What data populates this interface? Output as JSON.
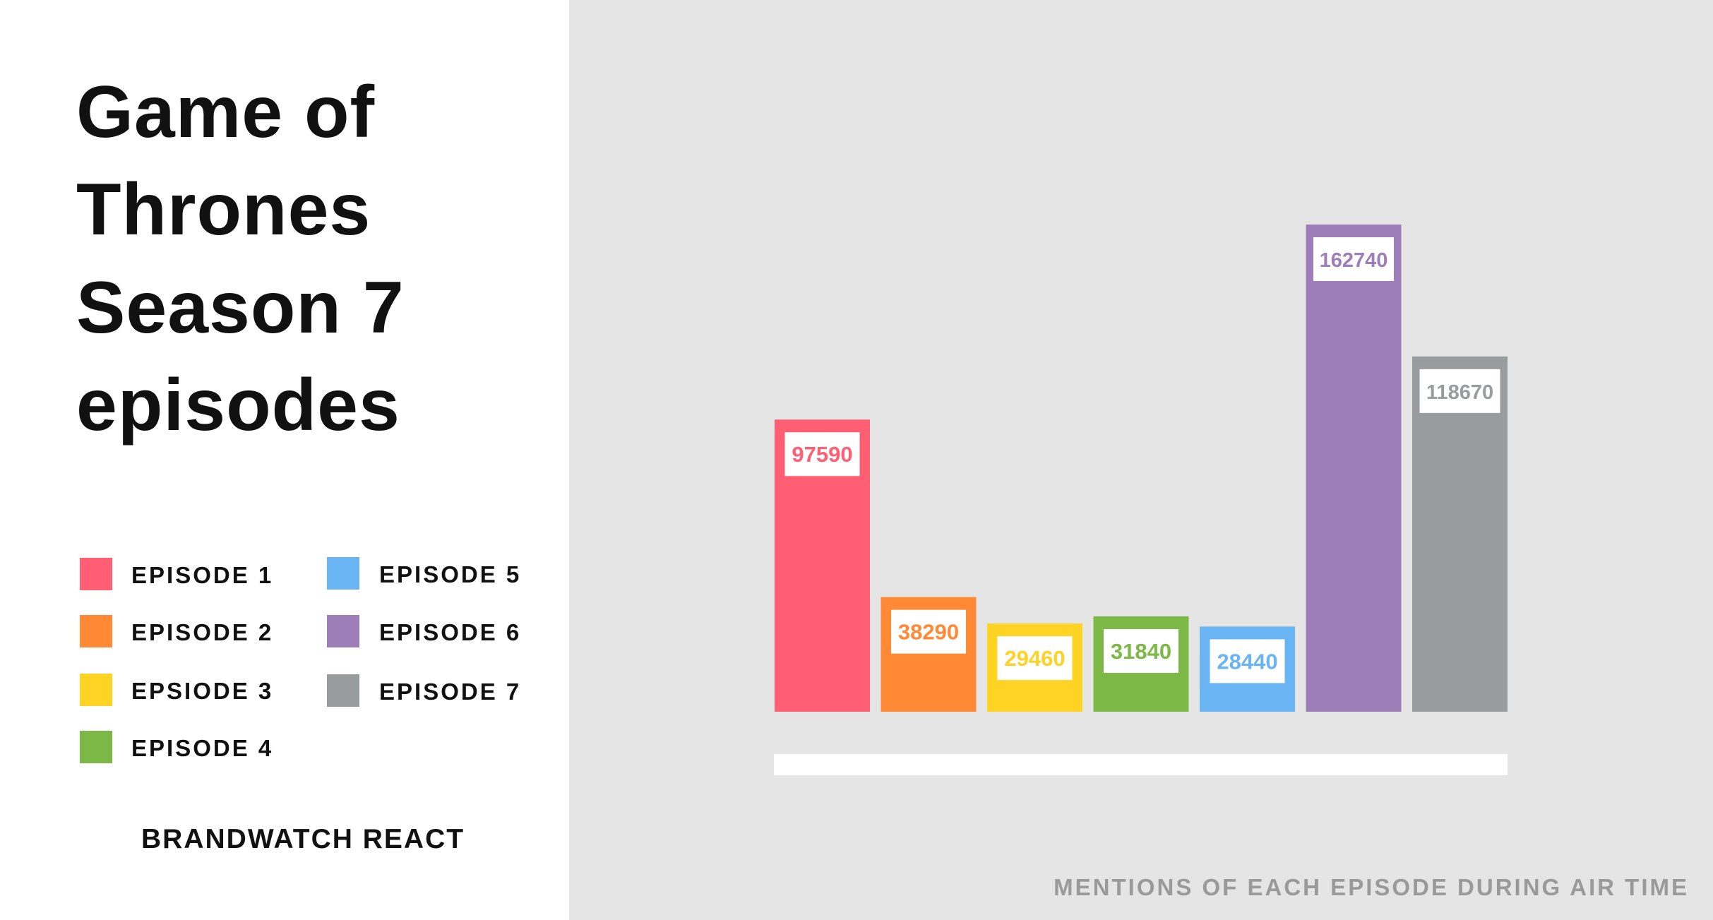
{
  "title_lines": [
    "Game of",
    "Thrones",
    "Season 7",
    "episodes"
  ],
  "brand": "BRANDWATCH REACT",
  "footnote": "MENTIONS OF EACH EPISODE DURING AIR TIME",
  "colors": {
    "left_background": "#ffffff",
    "chart_background": "#e5e5e5",
    "axis_bar": "#ffffff",
    "label_box": "#ffffff"
  },
  "chart_data": {
    "type": "bar",
    "title": "Game of Thrones Season 7 episodes",
    "xlabel": "",
    "ylabel": "",
    "ylim": [
      0,
      162740
    ],
    "grid": false,
    "legend_placement": "left",
    "categories": [
      "EPISODE 1",
      "EPISODE 2",
      "EPSIODE 3",
      "EPISODE 4",
      "EPISODE 5",
      "EPISODE 6",
      "EPISODE 7"
    ],
    "values": [
      97590,
      38290,
      29460,
      31840,
      28440,
      162740,
      118670
    ],
    "bar_labels": [
      "97590",
      "38290",
      "29460",
      "31840",
      "28440",
      "162740",
      "118670"
    ],
    "colors": [
      "#ff5e73",
      "#ff8934",
      "#ffd324",
      "#7cb845",
      "#69b4f2",
      "#9d7eb8",
      "#999c9d"
    ]
  }
}
